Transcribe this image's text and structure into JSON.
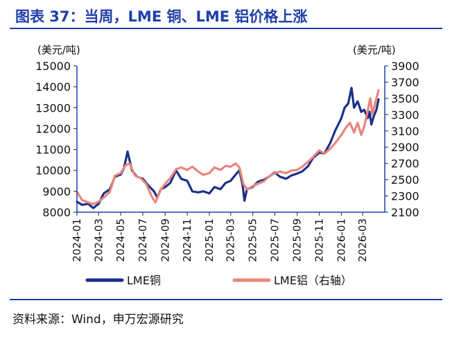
{
  "figure": {
    "title": "图表 37：当周，LME 铜、LME 铝价格上涨",
    "source": "资料来源：Wind，申万宏源研究",
    "colors": {
      "title": "#1f3ea8",
      "rule": "#1f3ea8",
      "copper": "#1b2f8a",
      "aluminum": "#e8867a",
      "axis": "#1f3ea8"
    }
  },
  "chart_data": {
    "type": "line",
    "left_unit": "(美元/吨)",
    "right_unit": "(美元/吨)",
    "yleft_ticks": [
      "8000",
      "9000",
      "10000",
      "11000",
      "12000",
      "13000",
      "14000",
      "15000"
    ],
    "yright_ticks": [
      "2100",
      "2300",
      "2500",
      "2700",
      "2900",
      "3100",
      "3300",
      "3500",
      "3700",
      "3900"
    ],
    "ylim_left": [
      8000,
      15000
    ],
    "ylim_right": [
      2100,
      3900
    ],
    "xlim": [
      "2024-01-01",
      "2026-05-01"
    ],
    "x_ticks": [
      "2024-01",
      "2024-03",
      "2024-05",
      "2024-07",
      "2024-09",
      "2024-11",
      "2025-01",
      "2025-03",
      "2025-05",
      "2025-07",
      "2025-09",
      "2025-11",
      "2026-01",
      "2026-03"
    ],
    "legend_position": "bottom",
    "grid": false,
    "series": [
      {
        "name": "LME铜",
        "axis": "left",
        "points": [
          [
            "2024-01-01",
            8500
          ],
          [
            "2024-01-15",
            8350
          ],
          [
            "2024-02-01",
            8400
          ],
          [
            "2024-02-15",
            8200
          ],
          [
            "2024-03-01",
            8400
          ],
          [
            "2024-03-15",
            8900
          ],
          [
            "2024-04-01",
            9100
          ],
          [
            "2024-04-15",
            9700
          ],
          [
            "2024-05-01",
            9800
          ],
          [
            "2024-05-10",
            10100
          ],
          [
            "2024-05-20",
            10900
          ],
          [
            "2024-06-01",
            10000
          ],
          [
            "2024-06-15",
            9700
          ],
          [
            "2024-07-01",
            9600
          ],
          [
            "2024-07-15",
            9300
          ],
          [
            "2024-08-01",
            9000
          ],
          [
            "2024-08-10",
            8700
          ],
          [
            "2024-08-20",
            9100
          ],
          [
            "2024-09-01",
            9200
          ],
          [
            "2024-09-15",
            9400
          ],
          [
            "2024-10-01",
            10000
          ],
          [
            "2024-10-15",
            9600
          ],
          [
            "2024-11-01",
            9500
          ],
          [
            "2024-11-15",
            9000
          ],
          [
            "2024-12-01",
            8950
          ],
          [
            "2024-12-15",
            9000
          ],
          [
            "2025-01-01",
            8900
          ],
          [
            "2025-01-15",
            9200
          ],
          [
            "2025-02-01",
            9100
          ],
          [
            "2025-02-15",
            9400
          ],
          [
            "2025-03-01",
            9500
          ],
          [
            "2025-03-15",
            9800
          ],
          [
            "2025-03-25",
            10000
          ],
          [
            "2025-04-03",
            9300
          ],
          [
            "2025-04-08",
            8550
          ],
          [
            "2025-04-15",
            9100
          ],
          [
            "2025-05-01",
            9200
          ],
          [
            "2025-05-15",
            9450
          ],
          [
            "2025-06-01",
            9550
          ],
          [
            "2025-06-15",
            9700
          ],
          [
            "2025-07-01",
            9900
          ],
          [
            "2025-07-15",
            9700
          ],
          [
            "2025-08-01",
            9600
          ],
          [
            "2025-08-15",
            9750
          ],
          [
            "2025-09-01",
            9850
          ],
          [
            "2025-09-15",
            9950
          ],
          [
            "2025-10-01",
            10200
          ],
          [
            "2025-10-15",
            10600
          ],
          [
            "2025-11-01",
            10850
          ],
          [
            "2025-11-15",
            10800
          ],
          [
            "2025-12-01",
            11300
          ],
          [
            "2025-12-15",
            11900
          ],
          [
            "2026-01-01",
            12500
          ],
          [
            "2026-01-10",
            13000
          ],
          [
            "2026-01-20",
            13200
          ],
          [
            "2026-01-29",
            13950
          ],
          [
            "2026-02-05",
            13000
          ],
          [
            "2026-02-15",
            13300
          ],
          [
            "2026-02-25",
            12800
          ],
          [
            "2026-03-05",
            12900
          ],
          [
            "2026-03-15",
            12500
          ],
          [
            "2026-03-20",
            12800
          ],
          [
            "2026-03-25",
            12200
          ],
          [
            "2026-04-01",
            12600
          ],
          [
            "2026-04-08",
            12900
          ],
          [
            "2026-04-14",
            13400
          ]
        ]
      },
      {
        "name": "LME铝（右轴）",
        "axis": "right",
        "points": [
          [
            "2024-01-01",
            2350
          ],
          [
            "2024-01-15",
            2250
          ],
          [
            "2024-02-01",
            2220
          ],
          [
            "2024-02-15",
            2200
          ],
          [
            "2024-03-01",
            2230
          ],
          [
            "2024-03-15",
            2280
          ],
          [
            "2024-04-01",
            2350
          ],
          [
            "2024-04-15",
            2550
          ],
          [
            "2024-05-01",
            2580
          ],
          [
            "2024-05-15",
            2680
          ],
          [
            "2024-05-25",
            2700
          ],
          [
            "2024-06-10",
            2550
          ],
          [
            "2024-06-25",
            2520
          ],
          [
            "2024-07-10",
            2450
          ],
          [
            "2024-07-25",
            2300
          ],
          [
            "2024-08-05",
            2220
          ],
          [
            "2024-08-20",
            2380
          ],
          [
            "2024-09-01",
            2450
          ],
          [
            "2024-09-15",
            2520
          ],
          [
            "2024-10-01",
            2630
          ],
          [
            "2024-10-15",
            2650
          ],
          [
            "2024-11-01",
            2620
          ],
          [
            "2024-11-15",
            2660
          ],
          [
            "2024-12-01",
            2600
          ],
          [
            "2024-12-15",
            2560
          ],
          [
            "2025-01-01",
            2580
          ],
          [
            "2025-01-15",
            2650
          ],
          [
            "2025-02-01",
            2620
          ],
          [
            "2025-02-15",
            2670
          ],
          [
            "2025-03-01",
            2660
          ],
          [
            "2025-03-15",
            2700
          ],
          [
            "2025-03-25",
            2650
          ],
          [
            "2025-04-05",
            2450
          ],
          [
            "2025-04-15",
            2380
          ],
          [
            "2025-05-01",
            2420
          ],
          [
            "2025-05-15",
            2450
          ],
          [
            "2025-06-01",
            2480
          ],
          [
            "2025-06-15",
            2540
          ],
          [
            "2025-07-01",
            2580
          ],
          [
            "2025-07-15",
            2600
          ],
          [
            "2025-08-01",
            2580
          ],
          [
            "2025-08-15",
            2610
          ],
          [
            "2025-09-01",
            2620
          ],
          [
            "2025-09-15",
            2660
          ],
          [
            "2025-10-01",
            2720
          ],
          [
            "2025-10-15",
            2780
          ],
          [
            "2025-11-01",
            2860
          ],
          [
            "2025-11-15",
            2820
          ],
          [
            "2025-12-01",
            2880
          ],
          [
            "2025-12-15",
            2950
          ],
          [
            "2026-01-01",
            3050
          ],
          [
            "2026-01-15",
            3150
          ],
          [
            "2026-01-25",
            3200
          ],
          [
            "2026-02-05",
            3080
          ],
          [
            "2026-02-15",
            3200
          ],
          [
            "2026-02-25",
            3050
          ],
          [
            "2026-03-05",
            3150
          ],
          [
            "2026-03-15",
            3350
          ],
          [
            "2026-03-22",
            3500
          ],
          [
            "2026-03-28",
            3300
          ],
          [
            "2026-04-05",
            3450
          ],
          [
            "2026-04-14",
            3600
          ]
        ]
      }
    ]
  }
}
